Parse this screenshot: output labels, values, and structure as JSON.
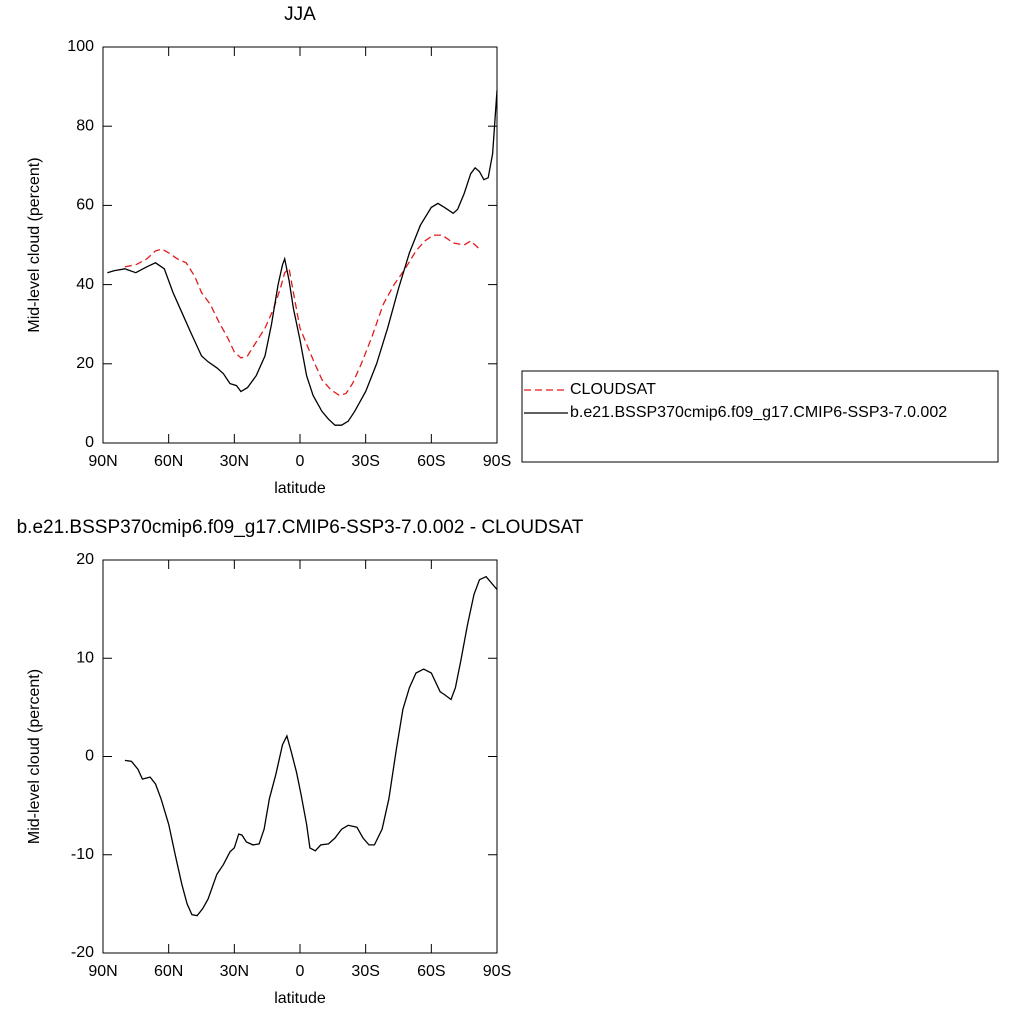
{
  "chart_data": [
    {
      "type": "line",
      "title": "JJA",
      "xlabel": "latitude",
      "ylabel": "Mid-level cloud (percent)",
      "xlim": [
        90,
        -90
      ],
      "xticks": [
        {
          "value": 90,
          "label": "90N"
        },
        {
          "value": 60,
          "label": "60N"
        },
        {
          "value": 30,
          "label": "30N"
        },
        0,
        {
          "value": -30,
          "label": "30S"
        },
        {
          "value": -60,
          "label": "60S"
        },
        {
          "value": -90,
          "label": "90S"
        }
      ],
      "ylim": [
        0,
        100
      ],
      "yticks": [
        0,
        20,
        40,
        60,
        80,
        100
      ],
      "legend": "right",
      "series": [
        {
          "name": "CLOUDSAT",
          "color": "#e31a1c",
          "dashed": true,
          "x": [
            80,
            75,
            70,
            66,
            63,
            60,
            56,
            52,
            48,
            45,
            41,
            37,
            33,
            30,
            27,
            24,
            20,
            16,
            12,
            9,
            7,
            5,
            3,
            0,
            -3,
            -6,
            -10,
            -14,
            -18,
            -21,
            -24,
            -28,
            -33,
            -38,
            -43,
            -48,
            -53,
            -57,
            -61,
            -65,
            -70,
            -75,
            -78,
            -82
          ],
          "values": [
            44.5,
            45,
            46.5,
            48.5,
            49,
            48,
            46.5,
            45.5,
            42,
            38,
            35,
            30.5,
            26.5,
            23,
            21.5,
            22,
            25.5,
            29,
            34,
            39,
            43,
            44,
            38,
            29,
            25,
            21,
            16,
            13.5,
            12,
            12.5,
            15,
            20,
            27,
            35,
            40,
            44,
            48.5,
            51,
            52.5,
            52.5,
            50.5,
            50,
            51,
            49
          ]
        },
        {
          "name": "b.e21.BSSP370cmip6.f09_g17.CMIP6-SSP3-7.0.002",
          "color": "#000000",
          "dashed": false,
          "x": [
            88,
            85,
            80,
            75,
            70,
            66,
            62,
            58,
            54,
            50,
            45,
            42,
            38,
            35,
            32,
            29,
            27,
            24,
            20,
            16,
            13,
            10,
            8,
            7,
            5,
            3,
            0,
            -3,
            -6,
            -10,
            -13,
            -16,
            -19,
            -22,
            -25,
            -30,
            -35,
            -40,
            -45,
            -50,
            -55,
            -60,
            -63,
            -66,
            -70,
            -72,
            -75,
            -78,
            -80,
            -82,
            -84,
            -86,
            -88,
            -90
          ],
          "values": [
            43,
            43.5,
            44,
            43,
            44.5,
            45.5,
            44,
            38,
            33,
            28,
            22,
            20.5,
            19,
            17.5,
            15,
            14.5,
            13,
            14,
            17,
            22,
            30,
            40,
            45,
            46.5,
            41,
            34,
            26,
            17,
            12,
            8,
            6,
            4.5,
            4.5,
            5.5,
            8,
            13,
            20,
            29,
            39,
            48,
            55,
            59.5,
            60.5,
            59.5,
            58,
            59,
            63,
            68,
            69.5,
            68.5,
            66.5,
            67,
            73,
            89
          ]
        }
      ]
    },
    {
      "type": "line",
      "title": "b.e21.BSSP370cmip6.f09_g17.CMIP6-SSP3-7.0.002 - CLOUDSAT",
      "xlabel": "latitude",
      "ylabel": "Mid-level cloud (percent)",
      "xlim": [
        90,
        -90
      ],
      "xticks": [
        {
          "value": 90,
          "label": "90N"
        },
        {
          "value": 60,
          "label": "60N"
        },
        {
          "value": 30,
          "label": "30N"
        },
        0,
        {
          "value": -30,
          "label": "30S"
        },
        {
          "value": -60,
          "label": "60S"
        },
        {
          "value": -90,
          "label": "90S"
        }
      ],
      "ylim": [
        -20,
        20
      ],
      "yticks": [
        -20,
        -10,
        0,
        10,
        20
      ],
      "color": "#000000",
      "x": [
        80,
        77,
        74,
        72,
        68.5,
        66,
        63.5,
        60,
        57,
        54,
        51.6,
        49.4,
        47,
        44.5,
        42,
        38,
        35,
        32,
        30,
        28,
        26.5,
        24.5,
        21.5,
        18.7,
        16.4,
        14,
        11,
        8,
        6,
        4,
        1.6,
        -0.5,
        -3,
        -4.5,
        -7,
        -9.5,
        -13,
        -16,
        -19,
        -22,
        -26,
        -28.8,
        -31.5,
        -34,
        -37.5,
        -40.6,
        -44,
        -47,
        -50,
        -53,
        -56.5,
        -60,
        -64,
        -66,
        -69,
        -71,
        -73.5,
        -76.5,
        -79.5,
        -82,
        -85,
        -90
      ],
      "values": [
        -0.4,
        -0.5,
        -1.3,
        -2.3,
        -2.1,
        -2.8,
        -4.3,
        -6.9,
        -10,
        -13,
        -15,
        -16.1,
        -16.2,
        -15.5,
        -14.5,
        -12,
        -11,
        -9.7,
        -9.3,
        -7.9,
        -8,
        -8.7,
        -9,
        -8.9,
        -7.4,
        -4.3,
        -1.8,
        1.2,
        2.1,
        0.5,
        -1.6,
        -3.9,
        -6.9,
        -9.3,
        -9.6,
        -9,
        -8.9,
        -8.3,
        -7.4,
        -7,
        -7.2,
        -8.3,
        -9,
        -9,
        -7.4,
        -4.3,
        0.7,
        4.8,
        7,
        8.5,
        8.9,
        8.5,
        6.6,
        6.3,
        5.8,
        7,
        9.8,
        13.4,
        16.5,
        18,
        18.3,
        17
      ]
    }
  ]
}
